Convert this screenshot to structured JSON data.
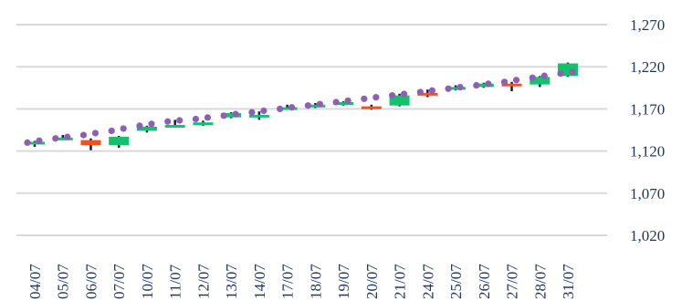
{
  "chart_data": {
    "type": "candlestick",
    "title": "",
    "xlabel": "",
    "ylabel": "",
    "ylim": [
      1020,
      1270
    ],
    "yticks": [
      "1,020",
      "1,070",
      "1,120",
      "1,170",
      "1,220",
      "1,270"
    ],
    "ytick_values": [
      1020,
      1070,
      1120,
      1170,
      1220,
      1270
    ],
    "y_axis_position": "right",
    "grid": true,
    "categories": [
      "04/07",
      "05/07",
      "06/07",
      "07/07",
      "10/07",
      "11/07",
      "12/07",
      "13/07",
      "14/07",
      "17/07",
      "18/07",
      "19/07",
      "20/07",
      "21/07",
      "24/07",
      "25/07",
      "26/07",
      "27/07",
      "28/07",
      "31/07"
    ],
    "series": [
      {
        "kind": "ohlc",
        "open": [
          1129,
          1135,
          1133,
          1127,
          1144,
          1150,
          1153,
          1160,
          1163,
          1171,
          1174,
          1175,
          1173,
          1174,
          1189,
          1194,
          1196,
          1200,
          1199,
          1209
        ],
        "close": [
          1131,
          1136,
          1127,
          1137,
          1149,
          1151,
          1154,
          1165,
          1163,
          1172,
          1175,
          1178,
          1172,
          1186,
          1188,
          1196,
          1200,
          1197,
          1208,
          1224
        ],
        "high": [
          1132,
          1139,
          1135,
          1138,
          1150,
          1157,
          1156,
          1166,
          1167,
          1175,
          1177,
          1179,
          1175,
          1188,
          1193,
          1198,
          1201,
          1202,
          1209,
          1225
        ],
        "low": [
          1125,
          1134,
          1121,
          1124,
          1142,
          1148,
          1150,
          1159,
          1157,
          1170,
          1171,
          1174,
          1169,
          1173,
          1184,
          1192,
          1195,
          1191,
          1196,
          1208
        ]
      },
      {
        "kind": "trend",
        "values": [
          1130,
          1135,
          1139,
          1144,
          1150,
          1155,
          1158,
          1162,
          1166,
          1170,
          1174,
          1178,
          1182,
          1186,
          1190,
          1194,
          1198,
          1202,
          1207,
          1212
        ]
      }
    ],
    "colors": {
      "up": "#13c26d",
      "down": "#f2531e",
      "wick": "#0c1d4a",
      "trend_dot": "#8e5fb5",
      "axis_text": "#1f3864",
      "grid": "#d9d9d9"
    }
  }
}
